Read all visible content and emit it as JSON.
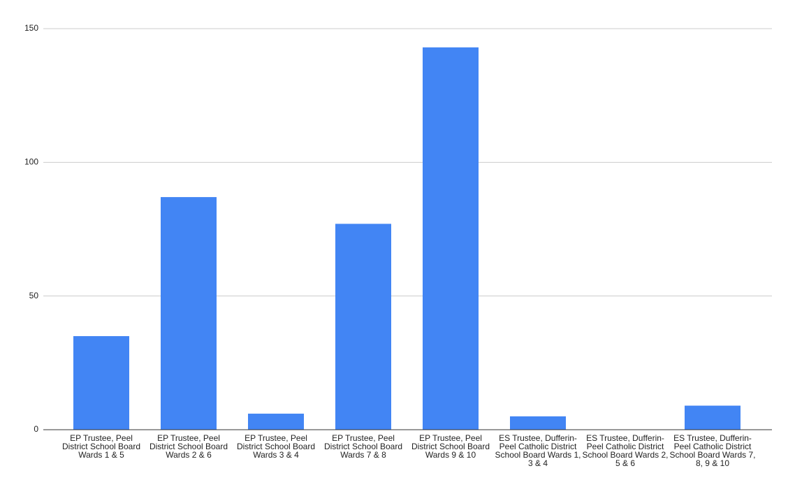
{
  "chart_data": {
    "type": "bar",
    "categories": [
      "EP Trustee, Peel District School Board Wards 1 & 5",
      "EP Trustee, Peel District School Board Wards 2 & 6",
      "EP Trustee, Peel District School Board Wards 3 & 4",
      "EP Trustee, Peel District School Board Wards 7 & 8",
      "EP Trustee, Peel District School Board Wards 9 & 10",
      "ES Trustee, Dufferin-Peel Catholic District School Board Wards 1, 3 & 4",
      "ES Trustee, Dufferin-Peel Catholic District School Board Wards 2, 5 & 6",
      "ES Trustee, Dufferin-Peel Catholic District School Board Wards 7, 8, 9 & 10"
    ],
    "values": [
      35,
      87,
      6,
      77,
      143,
      5,
      0,
      9
    ],
    "color": "#4285f4",
    "ylim": [
      0,
      150
    ],
    "yticks": [
      0,
      50,
      100,
      150
    ],
    "grid": true
  }
}
